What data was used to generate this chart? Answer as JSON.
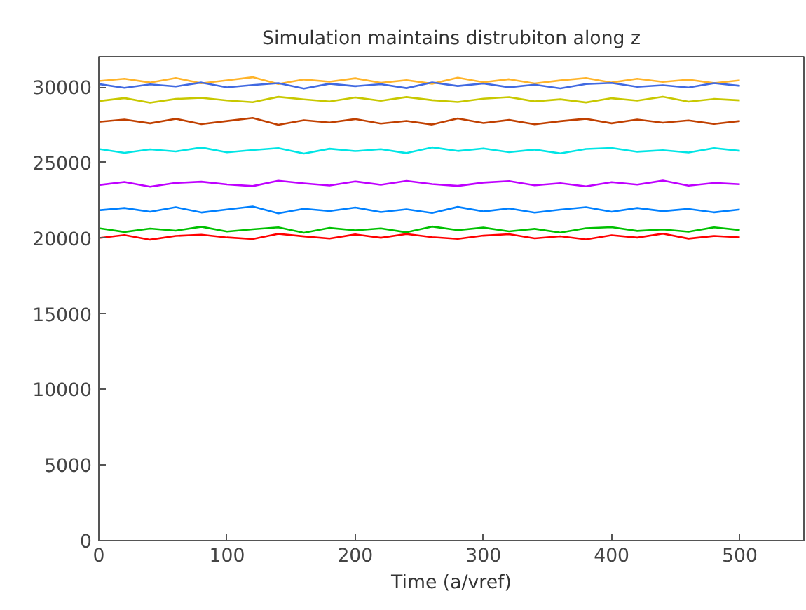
{
  "chart_data": {
    "type": "line",
    "title": "Simulation maintains distrubiton along z",
    "xlabel": "Time (a/vref)",
    "x": [
      0,
      20,
      40,
      60,
      80,
      100,
      120,
      140,
      160,
      180,
      200,
      220,
      240,
      260,
      280,
      300,
      320,
      340,
      360,
      380,
      400,
      420,
      440,
      460,
      480,
      500
    ],
    "series": [
      {
        "color": "#ffb42a",
        "values": [
          30400,
          30550,
          30300,
          30600,
          30250,
          30450,
          30650,
          30200,
          30500,
          30350,
          30580,
          30280,
          30460,
          30220,
          30620,
          30320,
          30520,
          30240,
          30440,
          30600,
          30300,
          30550,
          30340,
          30490,
          30260,
          30450
        ]
      },
      {
        "color": "#4169e1",
        "values": [
          30200,
          29950,
          30180,
          30040,
          30300,
          29980,
          30130,
          30260,
          29900,
          30220,
          30060,
          30190,
          29930,
          30310,
          30070,
          30240,
          29990,
          30160,
          29910,
          30200,
          30270,
          30020,
          30120,
          29970,
          30260,
          30080
        ]
      },
      {
        "color": "#c8c800",
        "values": [
          29070,
          29270,
          28960,
          29210,
          29290,
          29110,
          29000,
          29350,
          29180,
          29040,
          29310,
          29090,
          29340,
          29130,
          29010,
          29230,
          29330,
          29050,
          29190,
          28980,
          29260,
          29100,
          29360,
          29030,
          29210,
          29120
        ]
      },
      {
        "color": "#c04000",
        "values": [
          27700,
          27850,
          27600,
          27900,
          27550,
          27750,
          27950,
          27500,
          27800,
          27650,
          27880,
          27580,
          27760,
          27520,
          27920,
          27620,
          27820,
          27540,
          27740,
          27900,
          27600,
          27850,
          27640,
          27790,
          27560,
          27750
        ]
      },
      {
        "color": "#00e5e5",
        "values": [
          25900,
          25650,
          25880,
          25740,
          26000,
          25680,
          25830,
          25960,
          25600,
          25920,
          25760,
          25890,
          25630,
          26010,
          25770,
          25940,
          25690,
          25860,
          25610,
          25900,
          25970,
          25720,
          25820,
          25670,
          25960,
          25780
        ]
      },
      {
        "color": "#bf00ff",
        "values": [
          23520,
          23720,
          23410,
          23660,
          23740,
          23560,
          23450,
          23800,
          23630,
          23490,
          23760,
          23540,
          23790,
          23580,
          23460,
          23680,
          23780,
          23500,
          23640,
          23430,
          23710,
          23550,
          23810,
          23480,
          23660,
          23570
        ]
      },
      {
        "color": "#0080ff",
        "values": [
          21850,
          22000,
          21750,
          22050,
          21700,
          21900,
          22100,
          21650,
          21950,
          21800,
          22030,
          21730,
          21910,
          21670,
          22070,
          21770,
          21970,
          21690,
          21890,
          22050,
          21750,
          22000,
          21790,
          21940,
          21710,
          21900
        ]
      },
      {
        "color": "#00c000",
        "values": [
          20660,
          20410,
          20640,
          20500,
          20760,
          20440,
          20590,
          20720,
          20360,
          20680,
          20520,
          20650,
          20390,
          20770,
          20530,
          20700,
          20450,
          20620,
          20370,
          20660,
          20730,
          20480,
          20580,
          20430,
          20720,
          20540
        ]
      },
      {
        "color": "#ff0000",
        "values": [
          20010,
          20210,
          19900,
          20150,
          20230,
          20050,
          19940,
          20290,
          20120,
          19980,
          20250,
          20030,
          20280,
          20070,
          19950,
          20170,
          20270,
          19990,
          20130,
          19920,
          20200,
          20040,
          20300,
          19970,
          20150,
          20060
        ]
      }
    ],
    "xlim": [
      0,
      550
    ],
    "xticks": [
      0,
      100,
      200,
      300,
      400,
      500
    ],
    "ylim": [
      0,
      32000
    ],
    "yticks": [
      0,
      5000,
      10000,
      15000,
      20000,
      25000,
      30000
    ],
    "grid": false,
    "marker": "none",
    "line_style": "solid"
  }
}
